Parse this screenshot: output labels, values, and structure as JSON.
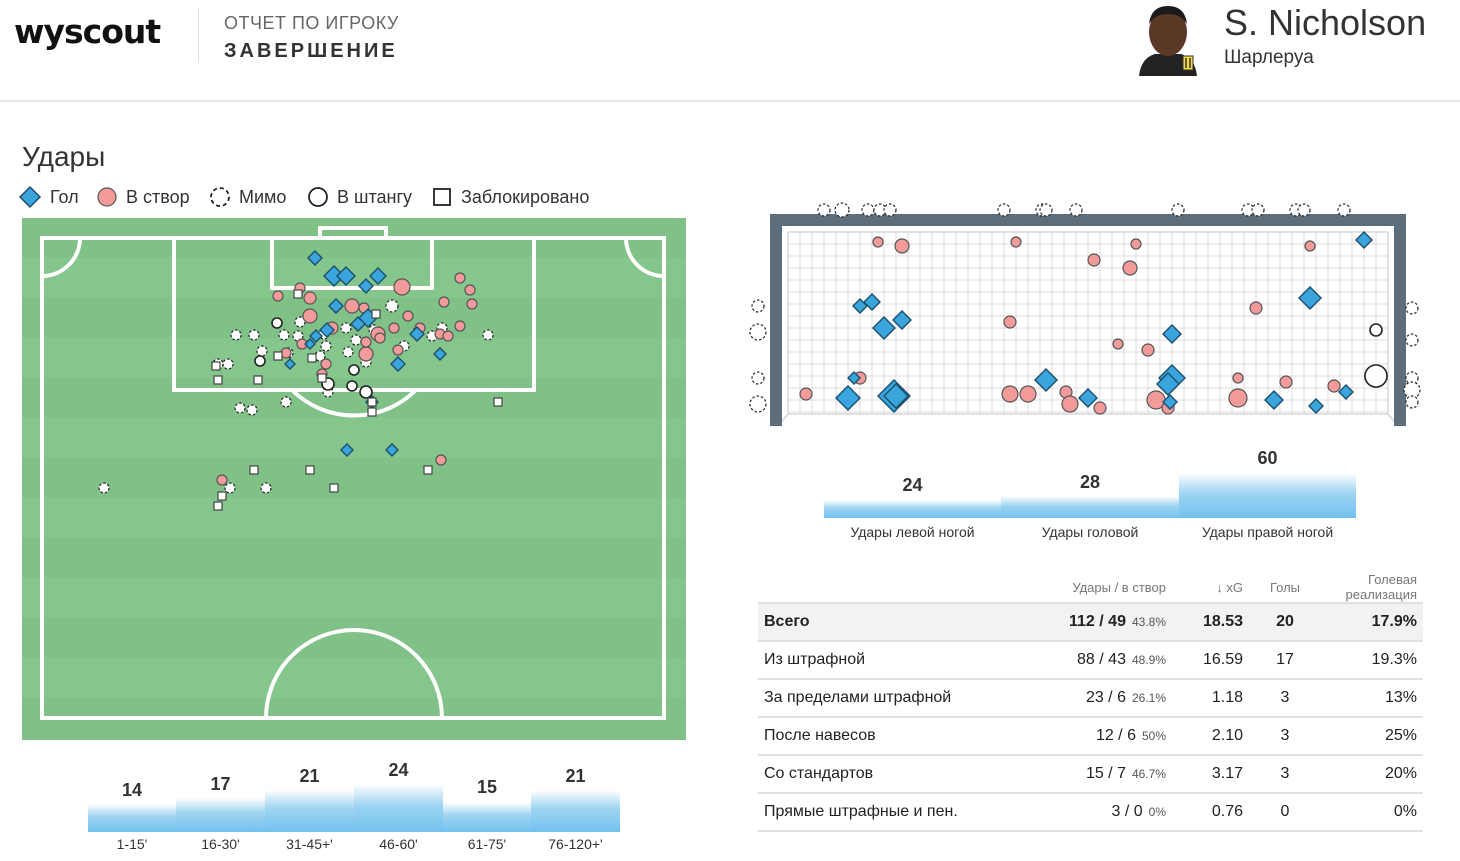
{
  "header": {
    "logo": "wyscout",
    "report_label": "ОТЧЕТ ПО ИГРОКУ",
    "report_title": "ЗАВЕРШЕНИЕ",
    "player_name": "S. Nicholson",
    "player_team": "Шарлеруа"
  },
  "section_title": "Удары",
  "legend": [
    {
      "label": "Гол",
      "icon": "diamond-icon"
    },
    {
      "label": "В створ",
      "icon": "circle-filled-icon"
    },
    {
      "label": "Мимо",
      "icon": "dashed-circle-icon"
    },
    {
      "label": "В штангу",
      "icon": "circle-outline-icon"
    },
    {
      "label": "Заблокировано",
      "icon": "square-outline-icon"
    }
  ],
  "colors": {
    "goal": "#3aa5dd",
    "on_target": "#f39a9a",
    "pitch": "#84c68c",
    "bar": "#84c9ee"
  },
  "time_bars": [
    {
      "label": "1-15'",
      "value": 14
    },
    {
      "label": "16-30'",
      "value": 17
    },
    {
      "label": "31-45+'",
      "value": 21
    },
    {
      "label": "46-60'",
      "value": 24
    },
    {
      "label": "61-75'",
      "value": 15
    },
    {
      "label": "76-120+'",
      "value": 21
    }
  ],
  "foot_bars": [
    {
      "label": "Удары левой ногой",
      "value": 24
    },
    {
      "label": "Удары головой",
      "value": 28
    },
    {
      "label": "Удары правой ногой",
      "value": 60
    }
  ],
  "table": {
    "headers": {
      "shots": "Удары / в створ",
      "xg": "↓ xG",
      "goals": "Голы",
      "conversion": "Голевая реализация"
    },
    "rows": [
      {
        "label": "Всего",
        "shots": "112 / 49",
        "pct": "43.8%",
        "xg": "18.53",
        "goals": "20",
        "conversion": "17.9%"
      },
      {
        "label": "Из штрафной",
        "shots": "88 / 43",
        "pct": "48.9%",
        "xg": "16.59",
        "goals": "17",
        "conversion": "19.3%"
      },
      {
        "label": "За пределами штрафной",
        "shots": "23 / 6",
        "pct": "26.1%",
        "xg": "1.18",
        "goals": "3",
        "conversion": "13%"
      },
      {
        "label": "После навесов",
        "shots": "12 / 6",
        "pct": "50%",
        "xg": "2.10",
        "goals": "3",
        "conversion": "25%"
      },
      {
        "label": "Со стандартов",
        "shots": "15 / 7",
        "pct": "46.7%",
        "xg": "3.17",
        "goals": "3",
        "conversion": "20%"
      },
      {
        "label": "Прямые штрафные и пен.",
        "shots": "3 / 0",
        "pct": "0%",
        "xg": "0.76",
        "goals": "0",
        "conversion": "0%"
      }
    ]
  }
}
